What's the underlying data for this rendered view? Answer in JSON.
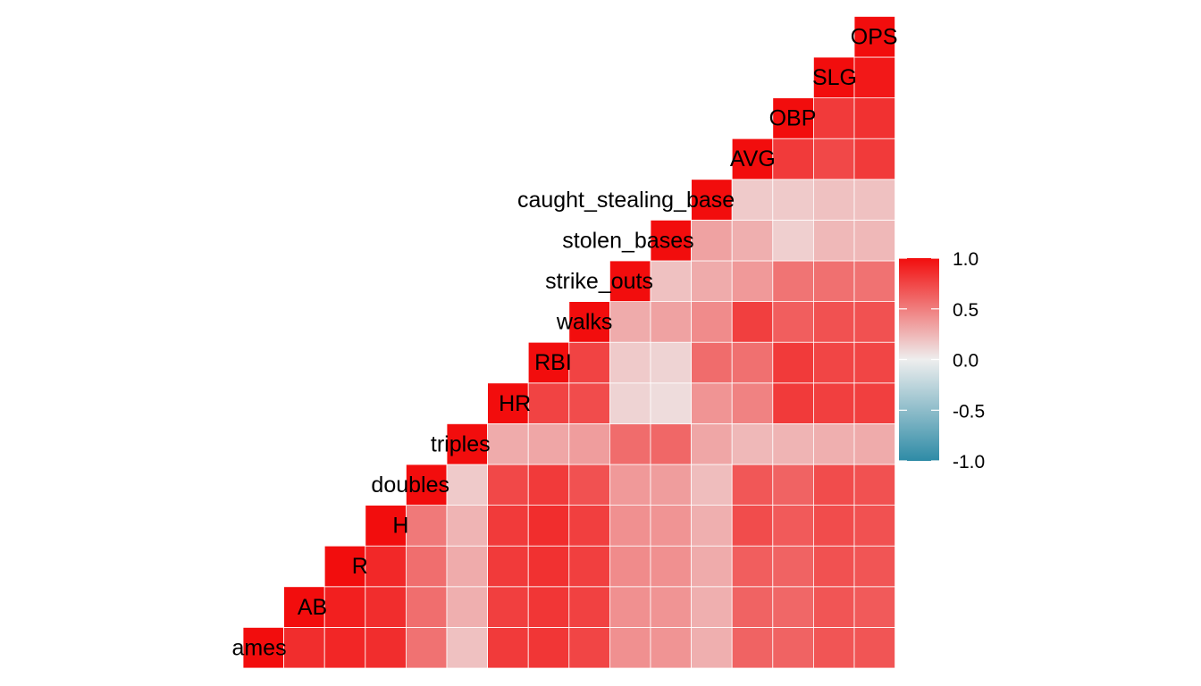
{
  "chart_data": {
    "type": "heatmap",
    "variables": [
      "ames",
      "AB",
      "R",
      "H",
      "doubles",
      "triples",
      "HR",
      "RBI",
      "walks",
      "strike_outs",
      "stolen_bases",
      "caught_stealing_base",
      "AVG",
      "OBP",
      "SLG",
      "OPS"
    ],
    "lower_triangle_only": true,
    "matrix": [
      [
        1.0,
        0.86,
        0.89,
        0.86,
        0.55,
        0.2,
        0.8,
        0.82,
        0.75,
        0.42,
        0.4,
        0.28,
        0.62,
        0.62,
        0.68,
        0.68
      ],
      [
        0.86,
        1.0,
        0.92,
        0.86,
        0.57,
        0.28,
        0.78,
        0.82,
        0.77,
        0.42,
        0.4,
        0.28,
        0.62,
        0.6,
        0.68,
        0.66
      ],
      [
        0.89,
        0.92,
        1.0,
        0.88,
        0.57,
        0.3,
        0.8,
        0.84,
        0.78,
        0.44,
        0.42,
        0.3,
        0.64,
        0.62,
        0.7,
        0.68
      ],
      [
        0.86,
        0.86,
        0.88,
        1.0,
        0.52,
        0.26,
        0.8,
        0.86,
        0.78,
        0.42,
        0.4,
        0.28,
        0.72,
        0.66,
        0.72,
        0.7
      ],
      [
        0.55,
        0.57,
        0.57,
        0.52,
        1.0,
        0.16,
        0.74,
        0.8,
        0.7,
        0.38,
        0.36,
        0.22,
        0.67,
        0.62,
        0.72,
        0.7
      ],
      [
        0.2,
        0.28,
        0.3,
        0.26,
        0.16,
        1.0,
        0.3,
        0.32,
        0.36,
        0.58,
        0.6,
        0.32,
        0.24,
        0.26,
        0.28,
        0.3
      ],
      [
        0.8,
        0.78,
        0.8,
        0.8,
        0.74,
        0.3,
        1.0,
        0.76,
        0.72,
        0.12,
        0.08,
        0.4,
        0.48,
        0.8,
        0.78,
        0.78
      ],
      [
        0.82,
        0.82,
        0.84,
        0.86,
        0.8,
        0.32,
        0.76,
        1.0,
        0.76,
        0.16,
        0.12,
        0.58,
        0.56,
        0.8,
        0.75,
        0.75
      ],
      [
        0.75,
        0.77,
        0.78,
        0.78,
        0.7,
        0.36,
        0.72,
        0.76,
        1.0,
        0.3,
        0.34,
        0.44,
        0.78,
        0.64,
        0.7,
        0.7
      ],
      [
        0.42,
        0.42,
        0.44,
        0.42,
        0.38,
        0.58,
        0.12,
        0.16,
        0.3,
        1.0,
        0.2,
        0.3,
        0.38,
        0.54,
        0.56,
        0.55
      ],
      [
        0.4,
        0.4,
        0.42,
        0.4,
        0.36,
        0.6,
        0.08,
        0.12,
        0.34,
        0.2,
        1.0,
        0.34,
        0.28,
        0.14,
        0.24,
        0.24
      ],
      [
        0.28,
        0.28,
        0.3,
        0.28,
        0.22,
        0.32,
        0.4,
        0.58,
        0.44,
        0.3,
        0.34,
        1.0,
        0.16,
        0.16,
        0.2,
        0.2
      ],
      [
        0.62,
        0.62,
        0.64,
        0.72,
        0.67,
        0.24,
        0.48,
        0.56,
        0.78,
        0.38,
        0.28,
        0.16,
        1.0,
        0.8,
        0.74,
        0.8
      ],
      [
        0.62,
        0.6,
        0.62,
        0.66,
        0.62,
        0.26,
        0.8,
        0.8,
        0.64,
        0.54,
        0.14,
        0.16,
        0.8,
        1.0,
        0.8,
        0.84
      ],
      [
        0.68,
        0.68,
        0.7,
        0.72,
        0.72,
        0.28,
        0.78,
        0.75,
        0.7,
        0.56,
        0.24,
        0.2,
        0.74,
        0.8,
        1.0,
        0.95
      ],
      [
        0.68,
        0.66,
        0.68,
        0.7,
        0.7,
        0.3,
        0.78,
        0.75,
        0.7,
        0.55,
        0.24,
        0.2,
        0.8,
        0.84,
        0.95,
        1.0
      ]
    ],
    "scale": {
      "limits": [
        -1.0,
        1.0
      ],
      "colors": {
        "low": "#2E8BA6",
        "mid": "#EEEEEE",
        "high": "#F20D0D"
      },
      "legend_ticks": [
        "1.0",
        "0.5",
        "0.0",
        "-0.5",
        "-1.0"
      ],
      "legend_placement": "right"
    },
    "title": "",
    "xlabel": "",
    "ylabel": "",
    "grid": false
  }
}
